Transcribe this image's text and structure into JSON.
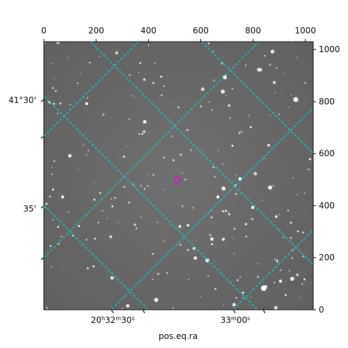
{
  "chart_data": {
    "type": "scatter",
    "description_free": true,
    "x_pixel_axis": {
      "ticks": [
        0,
        200,
        400,
        600,
        800,
        1000
      ],
      "range": [
        0,
        1030
      ]
    },
    "y_pixel_axis": {
      "ticks": [
        0,
        200,
        400,
        600,
        800,
        1000
      ],
      "range": [
        0,
        1030
      ]
    },
    "ra_axis": {
      "label": "pos.eq.ra",
      "tick_labels": [
        {
          "main": "20",
          "sup1": "h",
          "mid": "32",
          "sup2": "m",
          "end": "30",
          "sup3": "s"
        },
        {
          "main": "",
          "sup1": "",
          "mid": "33",
          "sup2": "m",
          "end": "00",
          "sup3": "s"
        }
      ]
    },
    "dec_axis": {
      "tick_labels": [
        "41°30'",
        "35'"
      ]
    },
    "grid_color": "#00e5e5",
    "marker_color": "#c81ec8",
    "background_color": "#6e6e6e",
    "target_marker_pixel": [
      510,
      500
    ]
  }
}
